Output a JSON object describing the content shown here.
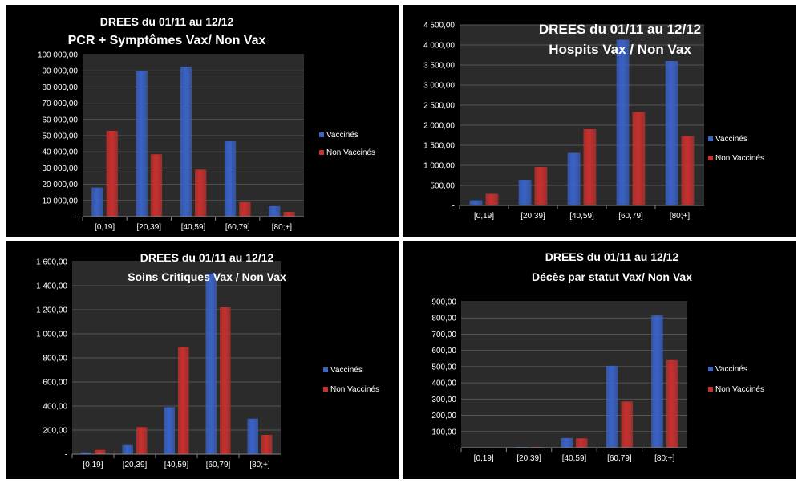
{
  "colors": {
    "vaccinated": "#3a63c8",
    "unvaccinated": "#c8302e",
    "plot_bg": "#2b2b2b",
    "gridline": "#555555"
  },
  "chart_data": [
    {
      "type": "bar",
      "title": [
        "DREES du 01/11 au 12/12",
        "PCR + Symptômes Vax/ Non Vax"
      ],
      "categories": [
        "[0,19]",
        "[20,39]",
        "[40,59]",
        "[60,79]",
        "[80;+]"
      ],
      "series": [
        {
          "name": "Vaccinés",
          "values": [
            18000,
            90000,
            92500,
            46500,
            6500
          ]
        },
        {
          "name": "Non Vaccinés",
          "values": [
            53000,
            38500,
            29000,
            9000,
            3000
          ]
        }
      ],
      "ylim": [
        0,
        100000
      ],
      "yticks": [
        "-",
        "10 000,00",
        "20 000,00",
        "30 000,00",
        "40 000,00",
        "50 000,00",
        "60 000,00",
        "70 000,00",
        "80 000,00",
        "90 000,00",
        "100 000,00"
      ],
      "grid": true,
      "legend": "right"
    },
    {
      "type": "bar",
      "title": [
        "DREES du 01/11 au 12/12",
        "Hospits Vax / Non Vax"
      ],
      "categories": [
        "[0,19]",
        "[20,39]",
        "[40,59]",
        "[60,79]",
        "[80;+]"
      ],
      "series": [
        {
          "name": "Vaccinés",
          "values": [
            130,
            640,
            1310,
            4130,
            3600
          ]
        },
        {
          "name": "Non Vaccinés",
          "values": [
            290,
            960,
            1900,
            2330,
            1730
          ]
        }
      ],
      "ylim": [
        0,
        4500
      ],
      "yticks": [
        "-",
        "500,00",
        "1 000,00",
        "1 500,00",
        "2 000,00",
        "2 500,00",
        "3 000,00",
        "3 500,00",
        "4 000,00",
        "4 500,00"
      ],
      "grid": true,
      "legend": "right"
    },
    {
      "type": "bar",
      "title": [
        "DREES du 01/11 au 12/12",
        "Soins Critiques Vax / Non Vax"
      ],
      "categories": [
        "[0,19]",
        "[20,39]",
        "[40,59]",
        "[60,79]",
        "[80;+]"
      ],
      "series": [
        {
          "name": "Vaccinés",
          "values": [
            15,
            75,
            390,
            1500,
            295
          ]
        },
        {
          "name": "Non Vaccinés",
          "values": [
            35,
            225,
            890,
            1220,
            160
          ]
        }
      ],
      "ylim": [
        0,
        1600
      ],
      "yticks": [
        "-",
        "200,00",
        "400,00",
        "600,00",
        "800,00",
        "1 000,00",
        "1 200,00",
        "1 400,00",
        "1 600,00"
      ],
      "grid": true,
      "legend": "right"
    },
    {
      "type": "bar",
      "title": [
        "DREES du 01/11 au 12/12",
        "Décès par statut Vax/ Non Vax"
      ],
      "categories": [
        "[0,19]",
        "[20,39]",
        "[40,59]",
        "[60,79]",
        "[80;+]"
      ],
      "series": [
        {
          "name": "Vaccinés",
          "values": [
            0,
            5,
            60,
            505,
            815
          ]
        },
        {
          "name": "Non Vaccinés",
          "values": [
            0,
            5,
            58,
            285,
            540
          ]
        }
      ],
      "ylim": [
        0,
        900
      ],
      "yticks": [
        "-",
        "100,00",
        "200,00",
        "300,00",
        "400,00",
        "500,00",
        "600,00",
        "700,00",
        "800,00",
        "900,00"
      ],
      "grid": true,
      "legend": "right"
    }
  ]
}
